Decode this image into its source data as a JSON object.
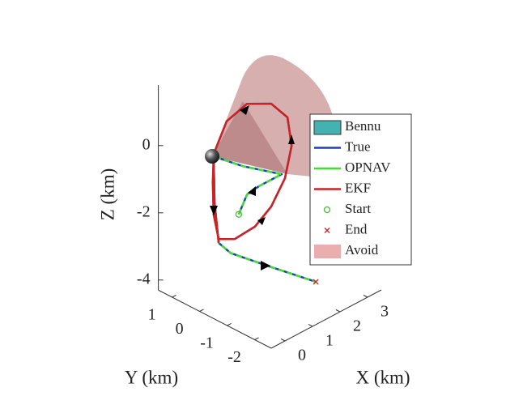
{
  "chart_data": {
    "type": "line3d",
    "xlabel": "X (km)",
    "ylabel": "Y (km)",
    "zlabel": "Z (km)",
    "xlim": [
      -0.5,
      3.5
    ],
    "ylim": [
      -2.6,
      1.5
    ],
    "zlim": [
      -4.3,
      1.8
    ],
    "xticks": [
      0,
      1,
      2,
      3
    ],
    "yticks": [
      -2,
      -1,
      0,
      1
    ],
    "zticks": [
      -4,
      -2,
      0
    ],
    "legend": [
      "Bennu",
      "True",
      "OPNAV",
      "EKF",
      "Start",
      "End",
      "Avoid"
    ],
    "legend_position": "right",
    "series": [
      {
        "name": "True",
        "color": "#1f3fbf",
        "x": [
          0.92,
          1.22,
          1.66,
          2.48,
          1.07,
          -0.02,
          0.48,
          1.22,
          2.1,
          2.69,
          2.84,
          2.6,
          2.1,
          1.51,
          0.78,
          0.19,
          0.01,
          -0.02,
          0.01,
          0.04,
          0.19,
          0.13,
          0.45,
          1.72
        ],
        "y": [
          0,
          0,
          0,
          0,
          0,
          0,
          0,
          0,
          0,
          0,
          0,
          0,
          0,
          0,
          0,
          0,
          0,
          0,
          0,
          0,
          0,
          -0.5,
          -1.5,
          -2
        ],
        "z": [
          -2.03,
          -1.57,
          -1.51,
          -1.51,
          -0.66,
          0.11,
          0.93,
          1.13,
          0.75,
          0.09,
          -0.82,
          -1.68,
          -2.31,
          -2.65,
          -2.7,
          -2.45,
          -1.64,
          -0.67,
          0.04,
          -1.29,
          -2.56,
          -2.63,
          -2.72,
          -3.54
        ]
      },
      {
        "name": "OPNAV",
        "color": "#44dd33",
        "dashed": true,
        "x": [
          0.92,
          1.22,
          1.66,
          2.48,
          1.07,
          -0.02,
          null,
          null,
          null,
          null,
          null,
          null,
          null,
          null,
          null,
          null,
          null,
          null,
          0.01,
          0.04,
          0.19,
          0.13,
          0.45,
          1.72
        ],
        "y": [
          0,
          0,
          0,
          0,
          0,
          0,
          null,
          null,
          null,
          null,
          null,
          null,
          null,
          null,
          null,
          null,
          null,
          null,
          0,
          0,
          0,
          -0.5,
          -1.5,
          -2
        ],
        "z": [
          -2.03,
          -1.57,
          -1.51,
          -1.51,
          -0.66,
          0.11,
          null,
          null,
          null,
          null,
          null,
          null,
          null,
          null,
          null,
          null,
          null,
          null,
          0.04,
          -1.29,
          -2.56,
          -2.63,
          -2.72,
          -3.54
        ]
      },
      {
        "name": "EKF",
        "color": "#cc2222",
        "x": [
          -0.02,
          0.48,
          1.22,
          2.1,
          2.69,
          2.84,
          2.6,
          2.1,
          1.51,
          0.78,
          0.19,
          0.01,
          -0.02,
          0.01,
          0.04,
          0.19
        ],
        "y": [
          0,
          0,
          0,
          0,
          0,
          0,
          0,
          0,
          0,
          0,
          0,
          0,
          0,
          0,
          0,
          0
        ],
        "z": [
          0.11,
          0.93,
          1.13,
          0.75,
          0.09,
          -0.82,
          -1.68,
          -2.31,
          -2.65,
          -2.7,
          -2.45,
          -1.64,
          -0.67,
          0.04,
          -1.29,
          -2.56
        ]
      }
    ],
    "start": {
      "x": 0.92,
      "y": 0,
      "z": -2.03,
      "color": "#44bb33"
    },
    "end": {
      "x": 1.72,
      "y": -2,
      "z": -3.54,
      "color": "#cc2222"
    }
  }
}
